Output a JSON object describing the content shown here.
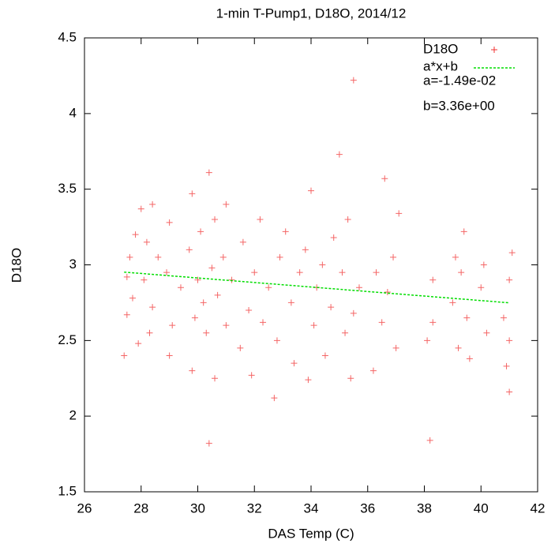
{
  "chart_data": {
    "type": "scatter",
    "title": "1-min T-Pump1, D18O, 2014/12",
    "xlabel": "DAS Temp (C)",
    "ylabel": "D18O",
    "xlim": [
      26,
      42
    ],
    "xticks": [
      26,
      28,
      30,
      32,
      34,
      36,
      38,
      40,
      42
    ],
    "ylim": [
      1.5,
      4.5
    ],
    "yticks": [
      1.5,
      2,
      2.5,
      3,
      3.5,
      4,
      4.5
    ],
    "annotations": [
      "a=-1.49e-02",
      "b=3.36e+00"
    ],
    "series": [
      {
        "name": "D18O",
        "color": "#f03232",
        "marker": "+",
        "x": [
          27.4,
          27.5,
          27.5,
          27.6,
          27.7,
          27.8,
          27.9,
          28.0,
          28.1,
          28.2,
          28.3,
          28.4,
          28.4,
          28.6,
          28.9,
          29.0,
          29.0,
          29.1,
          29.4,
          29.7,
          29.8,
          29.8,
          29.9,
          30.0,
          30.1,
          30.2,
          30.3,
          30.4,
          30.4,
          30.5,
          30.6,
          30.6,
          30.7,
          30.9,
          31.0,
          31.0,
          31.2,
          31.5,
          31.6,
          31.8,
          31.9,
          32.0,
          32.2,
          32.3,
          32.5,
          32.7,
          32.8,
          32.9,
          33.1,
          33.3,
          33.4,
          33.6,
          33.8,
          33.9,
          34.0,
          34.1,
          34.2,
          34.4,
          34.5,
          34.7,
          34.8,
          35.0,
          35.1,
          35.2,
          35.3,
          35.4,
          35.5,
          35.5,
          35.7,
          36.2,
          36.3,
          36.5,
          36.6,
          36.7,
          36.9,
          37.0,
          37.1,
          38.1,
          38.2,
          38.3,
          38.3,
          39.0,
          39.1,
          39.2,
          39.3,
          39.4,
          39.5,
          39.6,
          40.0,
          40.1,
          40.2,
          40.8,
          40.9,
          41.0,
          41.0,
          41.1,
          41.0
        ],
        "values": [
          2.4,
          2.67,
          2.92,
          3.05,
          2.78,
          3.2,
          2.48,
          3.37,
          2.9,
          3.15,
          2.55,
          3.4,
          2.72,
          3.05,
          2.95,
          3.28,
          2.4,
          2.6,
          2.85,
          3.1,
          3.47,
          2.3,
          2.65,
          2.9,
          3.22,
          2.75,
          2.55,
          3.61,
          1.82,
          2.98,
          3.3,
          2.25,
          2.8,
          3.05,
          3.4,
          2.6,
          2.9,
          2.45,
          3.15,
          2.7,
          2.27,
          2.95,
          3.3,
          2.62,
          2.85,
          2.12,
          2.5,
          3.05,
          3.22,
          2.75,
          2.35,
          2.95,
          3.1,
          2.24,
          3.49,
          2.6,
          2.85,
          3.0,
          2.4,
          2.72,
          3.18,
          3.73,
          2.95,
          2.55,
          3.3,
          2.25,
          4.22,
          2.68,
          2.85,
          2.3,
          2.95,
          2.62,
          3.57,
          2.82,
          3.05,
          2.45,
          3.34,
          2.5,
          1.84,
          2.9,
          2.62,
          2.75,
          3.05,
          2.45,
          2.95,
          3.22,
          2.65,
          2.38,
          2.85,
          3.0,
          2.55,
          2.65,
          2.33,
          2.16,
          2.9,
          3.08,
          2.5
        ]
      },
      {
        "name": "a*x+b",
        "color": "#00dd00",
        "marker": "line",
        "x": [
          27.4,
          41.0
        ],
        "values": [
          2.952,
          2.749
        ]
      }
    ]
  }
}
